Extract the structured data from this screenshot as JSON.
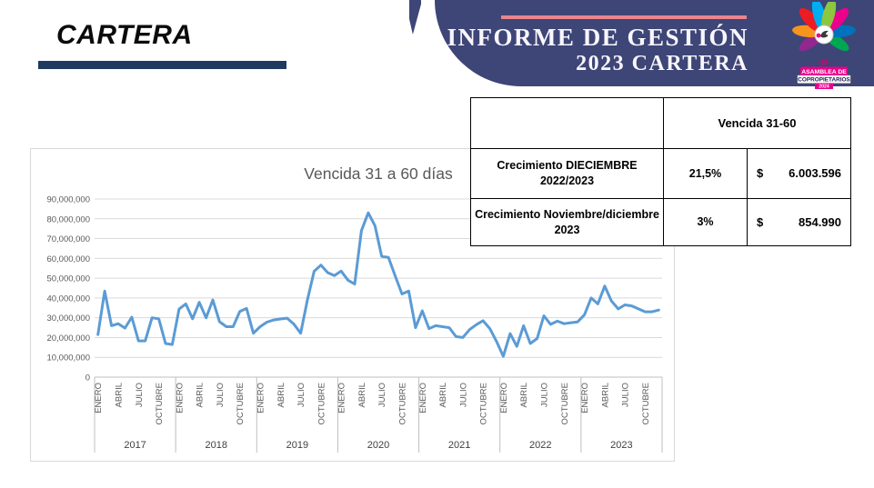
{
  "slide": {
    "section_title": "CARTERA",
    "banner": {
      "title_line1": "INFORME DE GESTIÓN",
      "title_line2": "2023 CARTERA",
      "bg_color": "#3e4577",
      "accent_color": "#e8858f"
    },
    "logo": {
      "badge_top": "-39-",
      "line1": "ASAMBLEA DE",
      "line2": "COPROPIETARIOS",
      "year": "2024"
    }
  },
  "table": {
    "header": "Vencida 31-60",
    "rows": [
      {
        "label": "Crecimiento DIECIEMBRE 2022/2023",
        "pct": "21,5%",
        "currency": "$",
        "value": "6.003.596"
      },
      {
        "label": "Crecimiento Noviembre/diciembre 2023",
        "pct": "3%",
        "currency": "$",
        "value": "854.990"
      }
    ]
  },
  "chart_data": {
    "type": "line",
    "title": "Vencida 31 a 60 días",
    "line_color": "#5b9bd5",
    "grid_color": "#d9d9d9",
    "axis_color": "#bfbfbf",
    "ylim": [
      0,
      90000000
    ],
    "ytick_step": 10000000,
    "ytick_labels": [
      "0",
      "10,000,000",
      "20,000,000",
      "30,000,000",
      "40,000,000",
      "50,000,000",
      "60,000,000",
      "70,000,000",
      "80,000,000",
      "90,000,000"
    ],
    "years": [
      "2017",
      "2018",
      "2019",
      "2020",
      "2021",
      "2022",
      "2023"
    ],
    "month_tick_labels": [
      "ENERO",
      "ABRIL",
      "JULIO",
      "OCTUBRE"
    ],
    "values": [
      21500000,
      43500000,
      26000000,
      27000000,
      24800000,
      30300000,
      18300000,
      18300000,
      30000000,
      29500000,
      17000000,
      16500000,
      34400000,
      37000000,
      29500000,
      37800000,
      30000000,
      39000000,
      28000000,
      25500000,
      25500000,
      33200000,
      34700000,
      22200000,
      25500000,
      27800000,
      28900000,
      29400000,
      29800000,
      26800000,
      22200000,
      39000000,
      53500000,
      56600000,
      52800000,
      51300000,
      53600000,
      49000000,
      47000000,
      74000000,
      83000000,
      76500000,
      61000000,
      60500000,
      51000000,
      42000000,
      43500000,
      25000000,
      33500000,
      24500000,
      26000000,
      25500000,
      25000000,
      20500000,
      20000000,
      24000000,
      26500000,
      28500000,
      24500000,
      18000000,
      10500000,
      22000000,
      15500000,
      26000000,
      17000000,
      19500000,
      31000000,
      26700000,
      28300000,
      27000000,
      27500000,
      27900000,
      31500000,
      40000000,
      37000000,
      46000000,
      38500000,
      34500000,
      36500000,
      36000000,
      34500000,
      33000000,
      33000000,
      33900000
    ]
  }
}
